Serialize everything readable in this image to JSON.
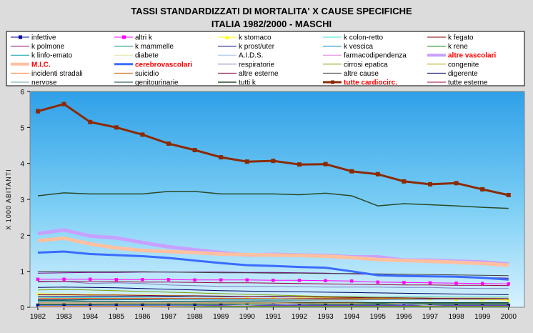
{
  "chart_data": {
    "type": "line",
    "title": "TASSI STANDARDIZZATI DI MORTALITA' X CAUSE SPECIFICHE",
    "subtitle": "ITALIA 1982/2000 - MASCHI",
    "ylabel": "X 1000 ABITANTI",
    "xlabel": "",
    "ylim": [
      0,
      6
    ],
    "yticks": [
      "0",
      "1",
      "2",
      "3",
      "4",
      "5",
      "6"
    ],
    "x": [
      "1982",
      "1983",
      "1984",
      "1985",
      "1986",
      "1987",
      "1988",
      "1989",
      "1990",
      "1991",
      "1992",
      "1993",
      "1994",
      "1995",
      "1996",
      "1997",
      "1998",
      "1999",
      "2000"
    ],
    "grid": false,
    "legend_position": "top",
    "series": [
      {
        "name": "infettive",
        "color": "#0000a0",
        "width": 1,
        "marker": "square",
        "bold": false,
        "values": [
          0.06,
          0.06,
          0.06,
          0.06,
          0.06,
          0.06,
          0.06,
          0.06,
          0.06,
          0.06,
          0.06,
          0.06,
          0.06,
          0.06,
          0.06,
          0.06,
          0.06,
          0.06,
          0.06
        ]
      },
      {
        "name": "altri k",
        "color": "#ff00ff",
        "width": 1,
        "marker": "square",
        "bold": false,
        "values": [
          0.78,
          0.78,
          0.78,
          0.77,
          0.77,
          0.77,
          0.76,
          0.76,
          0.76,
          0.75,
          0.75,
          0.74,
          0.73,
          0.7,
          0.69,
          0.68,
          0.67,
          0.66,
          0.65
        ]
      },
      {
        "name": "k stomaco",
        "color": "#ffff00",
        "width": 1,
        "marker": "triangle",
        "bold": false,
        "values": [
          0.38,
          0.37,
          0.36,
          0.35,
          0.34,
          0.33,
          0.32,
          0.31,
          0.3,
          0.29,
          0.28,
          0.27,
          0.26,
          0.25,
          0.24,
          0.23,
          0.22,
          0.21,
          0.2
        ]
      },
      {
        "name": "k colon-retto",
        "color": "#40e0d0",
        "width": 1,
        "marker": "none",
        "bold": false,
        "values": [
          0.26,
          0.27,
          0.27,
          0.28,
          0.28,
          0.29,
          0.29,
          0.29,
          0.3,
          0.3,
          0.3,
          0.3,
          0.3,
          0.3,
          0.3,
          0.3,
          0.29,
          0.29,
          0.29
        ]
      },
      {
        "name": "k fegato",
        "color": "#800000",
        "width": 1,
        "marker": "none",
        "bold": false,
        "values": [
          0.22,
          0.22,
          0.23,
          0.23,
          0.23,
          0.24,
          0.24,
          0.24,
          0.24,
          0.24,
          0.24,
          0.24,
          0.24,
          0.23,
          0.23,
          0.23,
          0.22,
          0.22,
          0.22
        ]
      },
      {
        "name": "k polmone",
        "color": "#800080",
        "width": 1,
        "marker": "none",
        "bold": false,
        "values": [
          0.95,
          0.96,
          0.97,
          0.97,
          0.98,
          0.98,
          0.98,
          0.98,
          0.97,
          0.97,
          0.96,
          0.95,
          0.93,
          0.91,
          0.89,
          0.87,
          0.85,
          0.83,
          0.81
        ]
      },
      {
        "name": "k mammelle",
        "color": "#008080",
        "width": 1,
        "marker": "none",
        "bold": false,
        "values": [
          0.01,
          0.01,
          0.01,
          0.01,
          0.01,
          0.01,
          0.01,
          0.01,
          0.01,
          0.01,
          0.01,
          0.01,
          0.01,
          0.01,
          0.01,
          0.01,
          0.01,
          0.01,
          0.01
        ]
      },
      {
        "name": "k prost/uter",
        "color": "#000080",
        "width": 1,
        "marker": "none",
        "bold": false,
        "values": [
          0.3,
          0.3,
          0.3,
          0.3,
          0.3,
          0.3,
          0.3,
          0.3,
          0.3,
          0.29,
          0.29,
          0.29,
          0.28,
          0.27,
          0.26,
          0.25,
          0.24,
          0.23,
          0.22
        ]
      },
      {
        "name": "k vescica",
        "color": "#0080c0",
        "width": 1,
        "marker": "none",
        "bold": false,
        "values": [
          0.12,
          0.12,
          0.12,
          0.12,
          0.12,
          0.12,
          0.12,
          0.12,
          0.12,
          0.12,
          0.12,
          0.12,
          0.12,
          0.11,
          0.11,
          0.11,
          0.11,
          0.11,
          0.11
        ]
      },
      {
        "name": "k rene",
        "color": "#008000",
        "width": 1,
        "marker": "none",
        "bold": false,
        "values": [
          0.08,
          0.08,
          0.08,
          0.09,
          0.09,
          0.09,
          0.09,
          0.09,
          0.09,
          0.09,
          0.09,
          0.09,
          0.09,
          0.09,
          0.09,
          0.09,
          0.09,
          0.09,
          0.09
        ]
      },
      {
        "name": "k linfo-emato",
        "color": "#00a0a0",
        "width": 1,
        "marker": "none",
        "bold": false,
        "values": [
          0.2,
          0.2,
          0.21,
          0.21,
          0.21,
          0.22,
          0.22,
          0.22,
          0.22,
          0.22,
          0.22,
          0.22,
          0.22,
          0.22,
          0.22,
          0.22,
          0.22,
          0.22,
          0.22
        ]
      },
      {
        "name": "diabete",
        "color": "#e0e0a0",
        "width": 1,
        "marker": "none",
        "bold": false,
        "values": [
          0.32,
          0.33,
          0.33,
          0.33,
          0.32,
          0.32,
          0.31,
          0.31,
          0.31,
          0.3,
          0.3,
          0.3,
          0.29,
          0.29,
          0.28,
          0.28,
          0.27,
          0.27,
          0.27
        ]
      },
      {
        "name": "A.I.D.S.",
        "color": "#a0c0e0",
        "width": 1,
        "marker": "none",
        "bold": false,
        "values": [
          0.0,
          0.0,
          0.0,
          0.0,
          0.0,
          0.01,
          0.02,
          0.04,
          0.06,
          0.08,
          0.1,
          0.12,
          0.14,
          0.13,
          0.09,
          0.05,
          0.03,
          0.03,
          0.03
        ]
      },
      {
        "name": "farmacodipendenza",
        "color": "#e080e0",
        "width": 1,
        "marker": "none",
        "bold": false,
        "values": [
          0.01,
          0.01,
          0.01,
          0.01,
          0.02,
          0.02,
          0.03,
          0.04,
          0.04,
          0.04,
          0.04,
          0.04,
          0.04,
          0.04,
          0.04,
          0.04,
          0.04,
          0.04,
          0.04
        ]
      },
      {
        "name": "altre vascolari",
        "color": "#c8a0ff",
        "width": 5,
        "marker": "none",
        "bold": true,
        "values": [
          2.05,
          2.15,
          1.98,
          1.93,
          1.8,
          1.68,
          1.6,
          1.52,
          1.45,
          1.47,
          1.45,
          1.44,
          1.4,
          1.4,
          1.31,
          1.31,
          1.28,
          1.26,
          1.2
        ]
      },
      {
        "name": "M.I.C.",
        "color": "#ffc0a0",
        "width": 5,
        "marker": "none",
        "bold": true,
        "values": [
          1.85,
          1.92,
          1.76,
          1.65,
          1.58,
          1.55,
          1.52,
          1.48,
          1.46,
          1.45,
          1.44,
          1.42,
          1.38,
          1.33,
          1.3,
          1.28,
          1.25,
          1.22,
          1.17
        ]
      },
      {
        "name": "cerebrovascolari",
        "color": "#3a6cff",
        "width": 3,
        "marker": "none",
        "bold": true,
        "values": [
          1.52,
          1.55,
          1.48,
          1.45,
          1.42,
          1.37,
          1.3,
          1.23,
          1.17,
          1.15,
          1.12,
          1.1,
          1.0,
          0.89,
          0.87,
          0.86,
          0.85,
          0.82,
          0.77
        ]
      },
      {
        "name": "respiratorie",
        "color": "#8080c0",
        "width": 1,
        "marker": "none",
        "bold": false,
        "values": [
          0.7,
          0.72,
          0.66,
          0.68,
          0.66,
          0.62,
          0.6,
          0.58,
          0.58,
          0.58,
          0.57,
          0.56,
          0.56,
          0.56,
          0.55,
          0.55,
          0.53,
          0.52,
          0.52
        ]
      },
      {
        "name": "cirrosi epatica",
        "color": "#80a000",
        "width": 1,
        "marker": "none",
        "bold": false,
        "values": [
          0.48,
          0.49,
          0.48,
          0.46,
          0.44,
          0.42,
          0.4,
          0.38,
          0.36,
          0.34,
          0.32,
          0.3,
          0.29,
          0.27,
          0.26,
          0.25,
          0.24,
          0.23,
          0.22
        ]
      },
      {
        "name": "congenite",
        "color": "#c0a000",
        "width": 1,
        "marker": "none",
        "bold": false,
        "values": [
          0.03,
          0.03,
          0.03,
          0.03,
          0.03,
          0.03,
          0.03,
          0.03,
          0.03,
          0.03,
          0.03,
          0.03,
          0.03,
          0.03,
          0.03,
          0.03,
          0.03,
          0.03,
          0.03
        ]
      },
      {
        "name": "incidenti stradali",
        "color": "#ff8040",
        "width": 1,
        "marker": "none",
        "bold": false,
        "values": [
          0.25,
          0.25,
          0.25,
          0.25,
          0.25,
          0.25,
          0.25,
          0.25,
          0.25,
          0.24,
          0.23,
          0.22,
          0.22,
          0.22,
          0.22,
          0.22,
          0.22,
          0.22,
          0.22
        ]
      },
      {
        "name": "suicidio",
        "color": "#c06000",
        "width": 1,
        "marker": "none",
        "bold": false,
        "values": [
          0.12,
          0.12,
          0.12,
          0.12,
          0.12,
          0.12,
          0.12,
          0.12,
          0.12,
          0.12,
          0.12,
          0.12,
          0.12,
          0.12,
          0.12,
          0.12,
          0.12,
          0.12,
          0.12
        ]
      },
      {
        "name": "altre esterne",
        "color": "#800040",
        "width": 1,
        "marker": "none",
        "bold": false,
        "values": [
          0.35,
          0.35,
          0.34,
          0.34,
          0.33,
          0.32,
          0.32,
          0.31,
          0.3,
          0.3,
          0.29,
          0.28,
          0.27,
          0.26,
          0.26,
          0.25,
          0.25,
          0.25,
          0.25
        ]
      },
      {
        "name": "altre cause",
        "color": "#404040",
        "width": 1,
        "marker": "none",
        "bold": false,
        "values": [
          1.0,
          1.0,
          0.99,
          0.99,
          0.99,
          0.98,
          0.97,
          0.96,
          0.96,
          0.95,
          0.95,
          0.94,
          0.94,
          0.93,
          0.92,
          0.91,
          0.9,
          0.89,
          0.88
        ]
      },
      {
        "name": "digerente",
        "color": "#000060",
        "width": 1,
        "marker": "none",
        "bold": false,
        "values": [
          0.55,
          0.56,
          0.55,
          0.54,
          0.52,
          0.5,
          0.48,
          0.46,
          0.45,
          0.44,
          0.43,
          0.42,
          0.41,
          0.4,
          0.39,
          0.38,
          0.37,
          0.36,
          0.35
        ]
      },
      {
        "name": "nervose",
        "color": "#60a0a0",
        "width": 1,
        "marker": "none",
        "bold": false,
        "values": [
          0.15,
          0.15,
          0.16,
          0.16,
          0.16,
          0.17,
          0.17,
          0.18,
          0.18,
          0.19,
          0.19,
          0.2,
          0.2,
          0.21,
          0.22,
          0.22,
          0.23,
          0.23,
          0.24
        ]
      },
      {
        "name": "genitourinarie",
        "color": "#004040",
        "width": 1,
        "marker": "none",
        "bold": false,
        "values": [
          0.18,
          0.18,
          0.17,
          0.17,
          0.16,
          0.16,
          0.16,
          0.15,
          0.15,
          0.15,
          0.14,
          0.14,
          0.14,
          0.13,
          0.13,
          0.13,
          0.13,
          0.13,
          0.13
        ]
      },
      {
        "name": "tutti k",
        "color": "#2a4a2a",
        "width": 1.5,
        "marker": "none",
        "bold": false,
        "values": [
          3.1,
          3.18,
          3.15,
          3.15,
          3.15,
          3.22,
          3.22,
          3.15,
          3.15,
          3.15,
          3.13,
          3.17,
          3.1,
          2.82,
          2.88,
          2.85,
          2.82,
          2.78,
          2.75
        ]
      },
      {
        "name": "tutte cardiocirc.",
        "color": "#8b2a00",
        "width": 3,
        "marker": "square",
        "bold": true,
        "values": [
          5.45,
          5.65,
          5.15,
          5.0,
          4.8,
          4.55,
          4.37,
          4.17,
          4.05,
          4.07,
          3.97,
          3.98,
          3.78,
          3.7,
          3.5,
          3.42,
          3.45,
          3.28,
          3.12
        ]
      },
      {
        "name": "tutte esterne",
        "color": "#a00040",
        "width": 1,
        "marker": "none",
        "bold": false,
        "values": [
          0.72,
          0.72,
          0.71,
          0.71,
          0.7,
          0.7,
          0.69,
          0.68,
          0.68,
          0.67,
          0.66,
          0.65,
          0.64,
          0.63,
          0.62,
          0.62,
          0.61,
          0.61,
          0.6
        ]
      }
    ]
  }
}
